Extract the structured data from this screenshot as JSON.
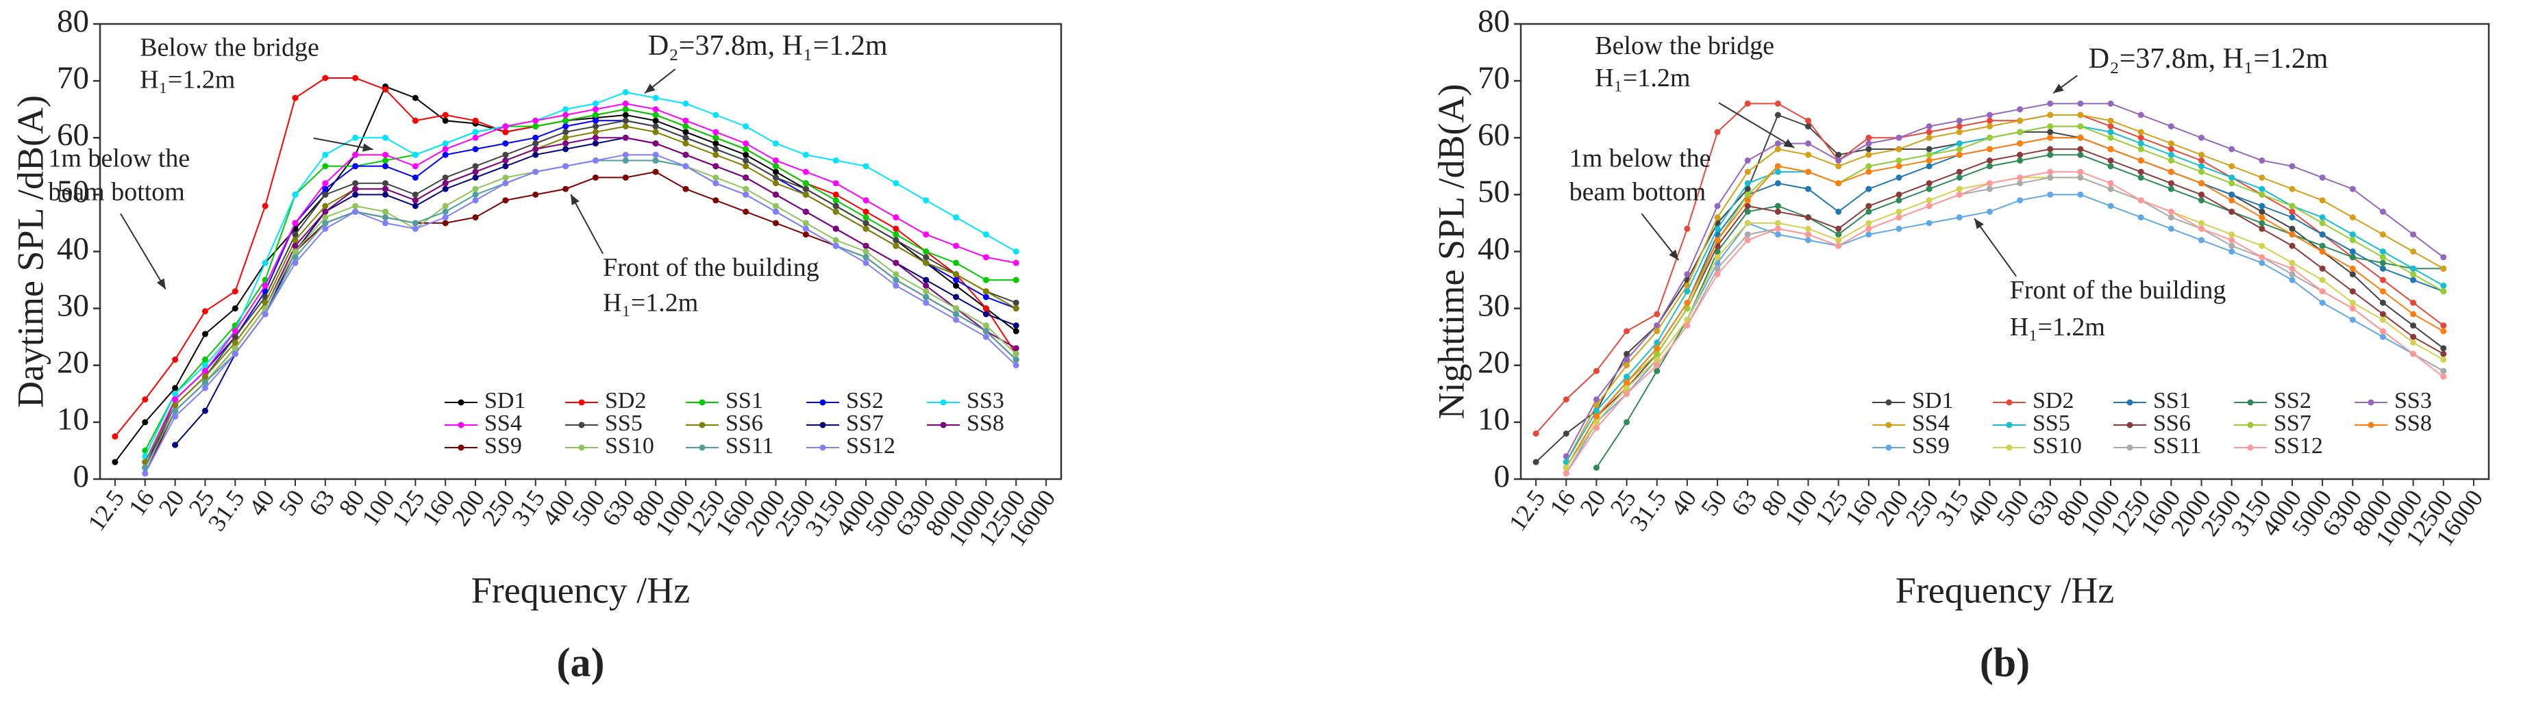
{
  "chart_data": [
    {
      "type": "line",
      "y_label": "Daytime SPL /dB(A)",
      "x_label": "Frequency /Hz",
      "panel_label": "(a)",
      "legend": "lower right",
      "annotations": [
        "Below the bridge",
        "H₁=1.2m",
        "D₂=37.8m, H₁=1.2m",
        "1m below the",
        "beam bottom",
        "Front of the building",
        "H₁=1.2m"
      ],
      "ylim": [
        0,
        80
      ],
      "yticks": [
        0,
        10,
        20,
        30,
        40,
        50,
        60,
        70,
        80
      ],
      "categories": [
        "12.5",
        "16",
        "20",
        "25",
        "31.5",
        "40",
        "50",
        "63",
        "80",
        "100",
        "125",
        "160",
        "200",
        "250",
        "315",
        "400",
        "500",
        "630",
        "800",
        "1000",
        "1250",
        "1600",
        "2000",
        "2500",
        "3150",
        "4000",
        "5000",
        "6300",
        "8000",
        "10000",
        "12500",
        "16000"
      ],
      "series": [
        {
          "name": "SD1",
          "color": "#000000",
          "values": [
            3,
            10,
            16,
            25.5,
            30,
            38,
            44,
            50,
            57,
            69,
            67,
            63,
            62.5,
            61,
            62,
            63,
            63.5,
            64,
            63,
            61,
            59,
            57,
            54,
            51,
            48,
            45,
            42,
            38,
            34,
            30,
            26,
            null
          ]
        },
        {
          "name": "SD2",
          "color": "#ff0000",
          "values": [
            7.5,
            14,
            21,
            29.5,
            33,
            48,
            67,
            70.5,
            70.5,
            68.5,
            63,
            64,
            63,
            61,
            62,
            63,
            64,
            65,
            64,
            62,
            60,
            58,
            55,
            52,
            50,
            47,
            44,
            40,
            36,
            30,
            22,
            null
          ]
        },
        {
          "name": "SS1",
          "color": "#00cc00",
          "values": [
            null,
            5,
            15,
            21,
            27,
            35,
            50,
            55,
            55,
            56,
            57,
            59,
            61,
            62,
            62,
            63,
            64,
            65,
            64,
            62,
            60,
            58,
            55,
            52,
            49,
            46,
            43,
            40,
            38,
            35,
            35,
            null
          ]
        },
        {
          "name": "SS2",
          "color": "#0000ff",
          "values": [
            null,
            2,
            14,
            19,
            25,
            33,
            45,
            51,
            55,
            55,
            53,
            57,
            58,
            59,
            60,
            62,
            63,
            63,
            62,
            60,
            58,
            56,
            53,
            50,
            47,
            44,
            41,
            38,
            35,
            32,
            30,
            null
          ]
        },
        {
          "name": "SS3",
          "color": "#00e5ff",
          "values": [
            null,
            4,
            15,
            20,
            26,
            38,
            50,
            57,
            60,
            60,
            57,
            59,
            61,
            62,
            63,
            65,
            66,
            68,
            67,
            66,
            64,
            62,
            59,
            57,
            56,
            55,
            52,
            49,
            46,
            43,
            40,
            null
          ]
        },
        {
          "name": "SS4",
          "color": "#ff00ff",
          "values": [
            null,
            3,
            14,
            19,
            26,
            34,
            45,
            52,
            57,
            57,
            55,
            58,
            60,
            62,
            63,
            64,
            65,
            66,
            65,
            63,
            61,
            59,
            56,
            54,
            52,
            49,
            46,
            43,
            41,
            39,
            38,
            null
          ]
        },
        {
          "name": "SS5",
          "color": "#444444",
          "values": [
            null,
            2,
            13,
            18,
            25,
            32,
            43,
            50,
            52,
            52,
            50,
            53,
            55,
            57,
            59,
            61,
            62,
            63,
            62,
            60,
            58,
            56,
            53,
            51,
            48,
            45,
            42,
            39,
            36,
            33,
            31,
            null
          ]
        },
        {
          "name": "SS6",
          "color": "#808000",
          "values": [
            null,
            3,
            13,
            18,
            24,
            31,
            42,
            48,
            51,
            51,
            49,
            52,
            54,
            56,
            58,
            60,
            61,
            62,
            61,
            59,
            57,
            55,
            52,
            50,
            47,
            44,
            41,
            38,
            36,
            33,
            30,
            null
          ]
        },
        {
          "name": "SS7",
          "color": "#000080",
          "values": [
            null,
            null,
            6,
            12,
            22,
            29,
            40,
            47,
            50,
            50,
            48,
            51,
            53,
            55,
            57,
            58,
            59,
            60,
            59,
            57,
            55,
            53,
            50,
            47,
            44,
            41,
            38,
            35,
            32,
            29,
            27,
            null
          ]
        },
        {
          "name": "SS8",
          "color": "#800080",
          "values": [
            null,
            2,
            12,
            17,
            23,
            30,
            41,
            47,
            51,
            51,
            49,
            52,
            54,
            56,
            58,
            59,
            60,
            60,
            59,
            57,
            55,
            53,
            50,
            47,
            44,
            41,
            38,
            34,
            30,
            26,
            23,
            null
          ]
        },
        {
          "name": "SS9",
          "color": "#800000",
          "values": [
            null,
            1,
            12,
            17,
            23,
            30,
            40,
            45,
            47,
            46,
            45,
            45,
            46,
            49,
            50,
            51,
            53,
            53,
            54,
            51,
            49,
            47,
            45,
            43,
            41,
            39,
            35,
            32,
            29,
            26,
            21,
            null
          ]
        },
        {
          "name": "SS10",
          "color": "#8fc45a",
          "values": [
            null,
            2,
            12,
            17,
            23,
            30,
            40,
            46,
            48,
            47,
            44,
            48,
            51,
            53,
            54,
            55,
            56,
            56,
            56,
            55,
            53,
            51,
            48,
            45,
            42,
            40,
            36,
            33,
            30,
            27,
            22,
            null
          ]
        },
        {
          "name": "SS11",
          "color": "#4f9f9f",
          "values": [
            null,
            2,
            12,
            17,
            22,
            29,
            39,
            45,
            47,
            46,
            45,
            47,
            50,
            52,
            54,
            55,
            56,
            56,
            56,
            55,
            52,
            50,
            47,
            44,
            41,
            39,
            35,
            32,
            29,
            26,
            21,
            null
          ]
        },
        {
          "name": "SS12",
          "color": "#8080ff",
          "values": [
            null,
            1,
            11,
            16,
            22,
            29,
            38,
            44,
            47,
            45,
            44,
            46,
            49,
            52,
            54,
            55,
            56,
            57,
            57,
            55,
            52,
            50,
            47,
            44,
            41,
            38,
            34,
            31,
            28,
            25,
            20,
            null
          ]
        }
      ]
    },
    {
      "type": "line",
      "y_label": "Nighttime SPL /dB(A)",
      "x_label": "Frequency /Hz",
      "panel_label": "(b)",
      "legend": "lower right",
      "annotations": [
        "Below the bridge",
        "H₁=1.2m",
        "D₂=37.8m, H₁=1.2m",
        "1m below the",
        "beam bottom",
        "Front of the building",
        "H₁=1.2m"
      ],
      "ylim": [
        0,
        80
      ],
      "yticks": [
        0,
        10,
        20,
        30,
        40,
        50,
        60,
        70,
        80
      ],
      "categories": [
        "12.5",
        "16",
        "20",
        "25",
        "31.5",
        "40",
        "50",
        "63",
        "80",
        "100",
        "125",
        "160",
        "200",
        "250",
        "315",
        "400",
        "500",
        "630",
        "800",
        "1000",
        "1250",
        "1600",
        "2000",
        "2500",
        "3150",
        "4000",
        "5000",
        "6300",
        "8000",
        "10000",
        "12500",
        "16000"
      ],
      "series": [
        {
          "name": "SD1",
          "color": "#444444",
          "values": [
            3,
            8,
            12,
            22,
            27,
            35,
            45,
            51,
            64,
            62,
            57,
            58,
            58,
            58,
            59,
            60,
            61,
            61,
            60,
            58,
            56,
            54,
            52,
            50,
            47,
            44,
            40,
            36,
            31,
            27,
            23,
            null
          ]
        },
        {
          "name": "SD2",
          "color": "#e8483a",
          "values": [
            8,
            14,
            19,
            26,
            29,
            44,
            61,
            66,
            66,
            63,
            56,
            60,
            60,
            61,
            62,
            63,
            63,
            64,
            64,
            62,
            60,
            58,
            56,
            53,
            50,
            47,
            43,
            39,
            35,
            31,
            27,
            null
          ]
        },
        {
          "name": "SS1",
          "color": "#1f77b4",
          "values": [
            null,
            2,
            11,
            17,
            23,
            31,
            43,
            50,
            52,
            51,
            47,
            51,
            53,
            55,
            57,
            58,
            59,
            60,
            60,
            58,
            56,
            54,
            52,
            50,
            48,
            46,
            43,
            40,
            37,
            35,
            33,
            null
          ]
        },
        {
          "name": "SS2",
          "color": "#2e8b57",
          "values": [
            null,
            null,
            2,
            10,
            19,
            28,
            40,
            47,
            48,
            46,
            43,
            47,
            49,
            51,
            53,
            55,
            56,
            57,
            57,
            55,
            53,
            51,
            49,
            47,
            45,
            43,
            41,
            39,
            38,
            37,
            37,
            null
          ]
        },
        {
          "name": "SS3",
          "color": "#9467bd",
          "values": [
            null,
            4,
            14,
            21,
            27,
            36,
            48,
            56,
            59,
            59,
            56,
            59,
            60,
            62,
            63,
            64,
            65,
            66,
            66,
            66,
            64,
            62,
            60,
            58,
            56,
            55,
            53,
            51,
            47,
            43,
            39,
            null
          ]
        },
        {
          "name": "SS4",
          "color": "#d4a017",
          "values": [
            null,
            3,
            13,
            20,
            26,
            34,
            46,
            54,
            58,
            57,
            55,
            57,
            58,
            60,
            61,
            62,
            63,
            64,
            64,
            63,
            61,
            59,
            57,
            55,
            53,
            51,
            49,
            46,
            43,
            40,
            37,
            null
          ]
        },
        {
          "name": "SS5",
          "color": "#17becf",
          "values": [
            null,
            3,
            12,
            18,
            24,
            33,
            44,
            52,
            54,
            54,
            52,
            55,
            56,
            57,
            59,
            60,
            61,
            62,
            62,
            61,
            59,
            57,
            55,
            53,
            51,
            48,
            46,
            43,
            40,
            37,
            34,
            null
          ]
        },
        {
          "name": "SS6",
          "color": "#8b3a3a",
          "values": [
            null,
            2,
            11,
            16,
            22,
            30,
            41,
            48,
            47,
            46,
            44,
            48,
            50,
            52,
            54,
            56,
            57,
            58,
            58,
            56,
            54,
            52,
            50,
            47,
            44,
            41,
            37,
            33,
            29,
            25,
            22,
            null
          ]
        },
        {
          "name": "SS7",
          "color": "#9acd32",
          "values": [
            null,
            2,
            11,
            17,
            22,
            30,
            42,
            50,
            55,
            54,
            52,
            55,
            56,
            57,
            58,
            60,
            61,
            62,
            62,
            60,
            58,
            56,
            54,
            52,
            50,
            48,
            45,
            42,
            39,
            36,
            33,
            null
          ]
        },
        {
          "name": "SS8",
          "color": "#ff7f0e",
          "values": [
            null,
            2,
            11,
            17,
            23,
            31,
            42,
            49,
            55,
            54,
            52,
            54,
            55,
            56,
            57,
            58,
            59,
            60,
            60,
            58,
            56,
            54,
            52,
            49,
            46,
            43,
            40,
            37,
            33,
            29,
            26,
            null
          ]
        },
        {
          "name": "SS9",
          "color": "#5fa8e8",
          "values": [
            null,
            1,
            10,
            15,
            21,
            28,
            38,
            45,
            43,
            42,
            41,
            43,
            44,
            45,
            46,
            47,
            49,
            50,
            50,
            48,
            46,
            44,
            42,
            40,
            38,
            35,
            31,
            28,
            25,
            22,
            19,
            null
          ]
        },
        {
          "name": "SS10",
          "color": "#d2d250",
          "values": [
            null,
            2,
            10,
            16,
            21,
            28,
            39,
            45,
            45,
            44,
            42,
            45,
            47,
            49,
            51,
            52,
            53,
            53,
            53,
            51,
            49,
            47,
            45,
            43,
            41,
            38,
            35,
            31,
            28,
            24,
            21,
            null
          ]
        },
        {
          "name": "SS11",
          "color": "#aaaaaa",
          "values": [
            null,
            1,
            9,
            15,
            20,
            27,
            37,
            43,
            44,
            43,
            41,
            44,
            46,
            48,
            50,
            51,
            52,
            53,
            53,
            51,
            49,
            46,
            44,
            41,
            39,
            36,
            33,
            30,
            26,
            22,
            19,
            null
          ]
        },
        {
          "name": "SS12",
          "color": "#ff9999",
          "values": [
            null,
            1,
            9,
            15,
            20,
            27,
            36,
            42,
            44,
            43,
            41,
            44,
            46,
            48,
            50,
            52,
            53,
            54,
            54,
            52,
            49,
            47,
            44,
            42,
            39,
            37,
            33,
            30,
            26,
            22,
            18,
            null
          ]
        }
      ]
    }
  ]
}
